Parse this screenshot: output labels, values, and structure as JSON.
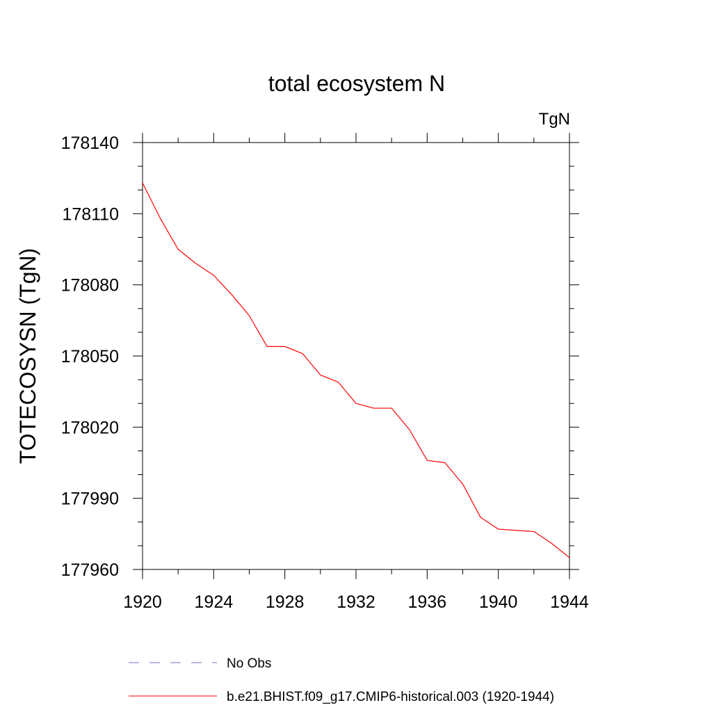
{
  "chart_data": {
    "type": "line",
    "title": "total ecosystem N",
    "units_label": "TgN",
    "xlabel": "",
    "ylabel": "TOTECOSYSN  (TgN)",
    "xlim": [
      1920,
      1944
    ],
    "ylim": [
      177960,
      178140
    ],
    "x_ticks": [
      1920,
      1924,
      1928,
      1932,
      1936,
      1940,
      1944
    ],
    "x_tick_labels": [
      "1920",
      "1924",
      "1928",
      "1932",
      "1936",
      "1940",
      "1944"
    ],
    "y_ticks": [
      177960,
      177990,
      178020,
      178050,
      178080,
      178110,
      178140
    ],
    "y_tick_labels": [
      "177960",
      "177990",
      "178020",
      "178050",
      "178080",
      "178110",
      "178140"
    ],
    "grid": false,
    "legend_position": "bottom",
    "series": [
      {
        "name": "b.e21.BHIST.f09_g17.CMIP6-historical.003 (1920-1944)",
        "color": "#ff0000",
        "style": "solid",
        "x": [
          1920,
          1921,
          1922,
          1923,
          1924,
          1925,
          1926,
          1927,
          1928,
          1929,
          1930,
          1931,
          1932,
          1933,
          1934,
          1935,
          1936,
          1937,
          1938,
          1939,
          1940,
          1941,
          1942,
          1943,
          1944
        ],
        "values": [
          178123,
          178108,
          178095,
          178089,
          178084,
          178076,
          178067,
          178054,
          178054,
          178051,
          178042,
          178039,
          178030,
          178028,
          178028,
          178019,
          178006,
          178005,
          177996,
          177982,
          177977,
          177976.5,
          177976,
          177971,
          177965
        ]
      }
    ],
    "legend": [
      {
        "label": "No Obs",
        "color": "#7070c0",
        "style": "dashed"
      },
      {
        "label": "b.e21.BHIST.f09_g17.CMIP6-historical.003 (1920-1944)",
        "color": "#ff0000",
        "style": "solid"
      }
    ]
  }
}
